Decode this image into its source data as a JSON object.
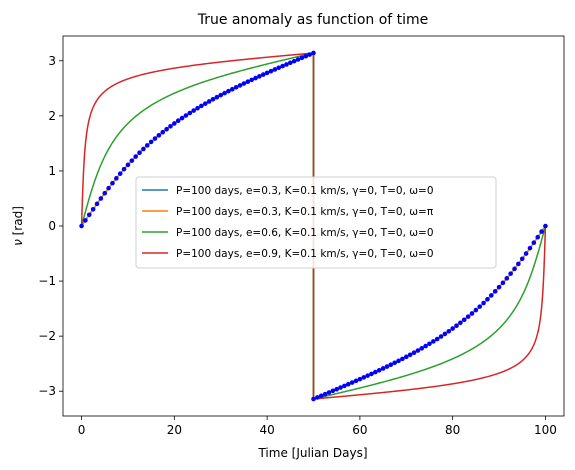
{
  "chart_data": {
    "type": "line",
    "title": "True anomaly as function of time",
    "xlabel": "Time [Julian Days]",
    "ylabel_symbol": "ν",
    "ylabel_unit": "[rad]",
    "xlim": [
      -4,
      104
    ],
    "ylim": [
      -3.45,
      3.45
    ],
    "xticks": [
      0,
      20,
      40,
      60,
      80,
      100
    ],
    "xtick_labels": [
      "0",
      "20",
      "40",
      "60",
      "80",
      "100"
    ],
    "yticks": [
      -3,
      -2,
      -1,
      0,
      1,
      2,
      3
    ],
    "ytick_labels": [
      "−3",
      "−2",
      "−1",
      "0",
      "1",
      "2",
      "3"
    ],
    "grid": false,
    "legend_position": "center",
    "period": 100,
    "series": [
      {
        "name": "P=100 days, e=0.3, K=0.1 km/s, γ=0, T=0, ω=0",
        "e": 0.3,
        "color": "#1f77b4",
        "width": 1.5
      },
      {
        "name": "P=100 days, e=0.3, K=0.1 km/s, γ=0, T=0, ω=π",
        "e": 0.3,
        "color": "#ff7f0e",
        "width": 1.5
      },
      {
        "name": "P=100 days, e=0.6, K=0.1 km/s, γ=0, T=0, ω=0",
        "e": 0.6,
        "color": "#2ca02c",
        "width": 1.5
      },
      {
        "name": "P=100 days, e=0.9, K=0.1 km/s, γ=0, T=0, ω=0",
        "e": 0.9,
        "color": "#d62728",
        "width": 1.5
      }
    ],
    "markers": {
      "e": 0.3,
      "color": "#0000ff"
    }
  }
}
